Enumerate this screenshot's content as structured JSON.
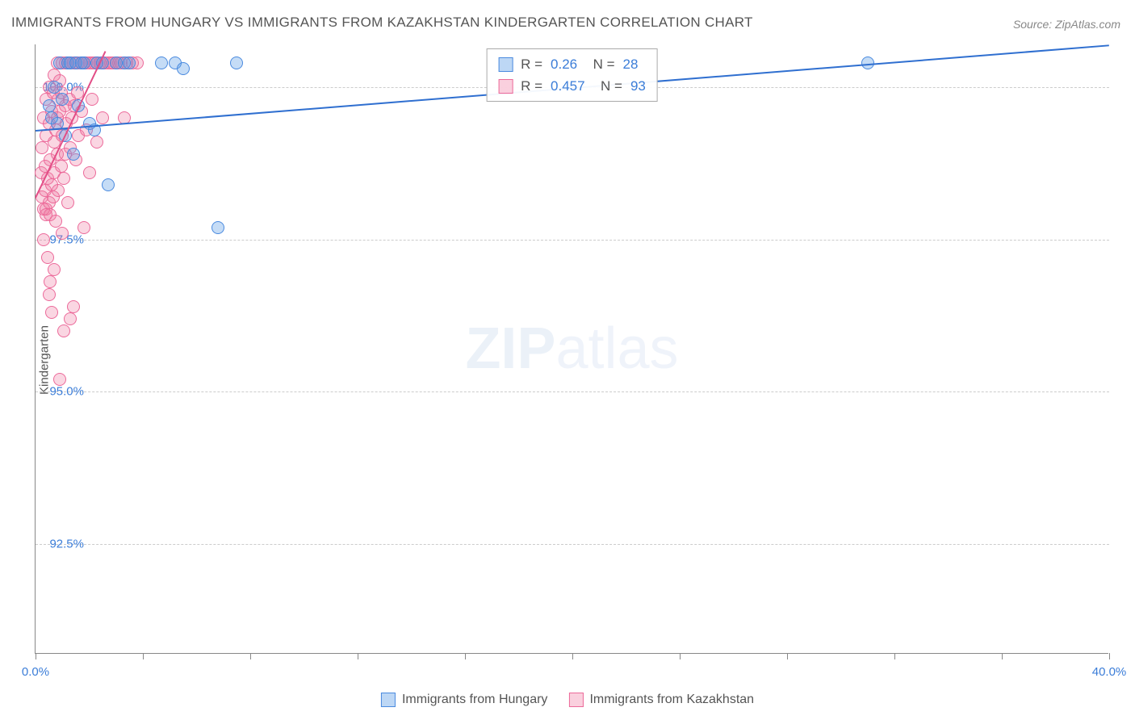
{
  "title": "IMMIGRANTS FROM HUNGARY VS IMMIGRANTS FROM KAZAKHSTAN KINDERGARTEN CORRELATION CHART",
  "source": "Source: ZipAtlas.com",
  "ylabel": "Kindergarten",
  "watermark_bold": "ZIP",
  "watermark_thin": "atlas",
  "chart": {
    "type": "scatter",
    "background_color": "#ffffff",
    "grid_color": "#cccccc",
    "grid_style": "dashed",
    "axis_color": "#888888",
    "xlim": [
      0.0,
      40.0
    ],
    "ylim": [
      90.7,
      100.7
    ],
    "xticks": [
      0.0,
      4.0,
      8.0,
      12.0,
      16.0,
      20.0,
      24.0,
      28.0,
      32.0,
      36.0,
      40.0
    ],
    "xtick_labels_shown": {
      "0": "0.0%",
      "40": "40.0%"
    },
    "yticks": [
      92.5,
      95.0,
      97.5,
      100.0
    ],
    "ytick_labels": [
      "92.5%",
      "95.0%",
      "97.5%",
      "100.0%"
    ],
    "title_fontsize": 17,
    "title_color": "#555555",
    "label_fontsize": 15,
    "tick_label_color": "#3b7dd8",
    "marker_size": 16,
    "marker_opacity": 0.35,
    "series": [
      {
        "name": "Immigrants from Hungary",
        "color_fill": "rgba(90,155,230,0.35)",
        "color_stroke": "#4a8adf",
        "R": 0.26,
        "N": 28,
        "trend": {
          "x1": 0.0,
          "y1": 99.3,
          "x2": 40.0,
          "y2": 100.7,
          "color": "#2f6fd0",
          "width": 2
        },
        "points": [
          [
            0.5,
            99.7
          ],
          [
            0.6,
            99.5
          ],
          [
            0.7,
            100.0
          ],
          [
            0.8,
            99.4
          ],
          [
            0.9,
            100.4
          ],
          [
            1.0,
            99.8
          ],
          [
            1.1,
            99.2
          ],
          [
            1.2,
            100.4
          ],
          [
            1.3,
            100.4
          ],
          [
            1.4,
            98.9
          ],
          [
            1.5,
            100.4
          ],
          [
            1.7,
            100.4
          ],
          [
            1.8,
            100.4
          ],
          [
            2.0,
            99.4
          ],
          [
            2.2,
            99.3
          ],
          [
            2.3,
            100.4
          ],
          [
            2.5,
            100.4
          ],
          [
            2.7,
            98.4
          ],
          [
            3.0,
            100.4
          ],
          [
            3.3,
            100.4
          ],
          [
            3.5,
            100.4
          ],
          [
            4.7,
            100.4
          ],
          [
            5.2,
            100.4
          ],
          [
            5.5,
            100.3
          ],
          [
            6.8,
            97.7
          ],
          [
            7.5,
            100.4
          ],
          [
            31.0,
            100.4
          ],
          [
            1.6,
            99.7
          ]
        ]
      },
      {
        "name": "Immigrants from Kazakhstan",
        "color_fill": "rgba(240,120,160,0.3)",
        "color_stroke": "#ec6a9a",
        "R": 0.457,
        "N": 93,
        "trend": {
          "x1": 0.0,
          "y1": 98.2,
          "x2": 2.6,
          "y2": 100.6,
          "color": "#e24d86",
          "width": 2
        },
        "points": [
          [
            0.2,
            98.6
          ],
          [
            0.25,
            98.2
          ],
          [
            0.25,
            99.0
          ],
          [
            0.3,
            98.0
          ],
          [
            0.3,
            97.5
          ],
          [
            0.3,
            99.5
          ],
          [
            0.35,
            98.7
          ],
          [
            0.35,
            98.3
          ],
          [
            0.4,
            99.2
          ],
          [
            0.4,
            98.0
          ],
          [
            0.4,
            97.9
          ],
          [
            0.4,
            99.8
          ],
          [
            0.45,
            97.2
          ],
          [
            0.45,
            98.5
          ],
          [
            0.5,
            96.6
          ],
          [
            0.5,
            98.1
          ],
          [
            0.5,
            99.4
          ],
          [
            0.5,
            100.0
          ],
          [
            0.55,
            97.9
          ],
          [
            0.55,
            98.8
          ],
          [
            0.6,
            96.3
          ],
          [
            0.6,
            99.6
          ],
          [
            0.6,
            98.4
          ],
          [
            0.65,
            99.9
          ],
          [
            0.65,
            98.2
          ],
          [
            0.7,
            99.1
          ],
          [
            0.7,
            100.2
          ],
          [
            0.7,
            98.6
          ],
          [
            0.75,
            97.8
          ],
          [
            0.75,
            99.3
          ],
          [
            0.8,
            100.4
          ],
          [
            0.8,
            98.9
          ],
          [
            0.8,
            99.5
          ],
          [
            0.85,
            99.8
          ],
          [
            0.85,
            98.3
          ],
          [
            0.9,
            95.2
          ],
          [
            0.9,
            99.6
          ],
          [
            0.9,
            100.1
          ],
          [
            0.95,
            98.7
          ],
          [
            0.95,
            99.9
          ],
          [
            1.0,
            100.4
          ],
          [
            1.0,
            97.6
          ],
          [
            1.0,
            99.2
          ],
          [
            1.05,
            98.5
          ],
          [
            1.1,
            100.4
          ],
          [
            1.1,
            99.7
          ],
          [
            1.1,
            98.9
          ],
          [
            1.15,
            99.4
          ],
          [
            1.2,
            100.4
          ],
          [
            1.2,
            98.1
          ],
          [
            1.25,
            99.8
          ],
          [
            1.3,
            100.4
          ],
          [
            1.3,
            99.0
          ],
          [
            1.35,
            99.5
          ],
          [
            1.4,
            100.4
          ],
          [
            1.4,
            96.4
          ],
          [
            1.45,
            99.7
          ],
          [
            1.5,
            100.4
          ],
          [
            1.5,
            98.8
          ],
          [
            1.55,
            99.9
          ],
          [
            1.6,
            100.4
          ],
          [
            1.6,
            99.2
          ],
          [
            1.7,
            100.4
          ],
          [
            1.7,
            99.6
          ],
          [
            1.8,
            100.4
          ],
          [
            1.8,
            97.7
          ],
          [
            1.9,
            100.4
          ],
          [
            1.9,
            99.3
          ],
          [
            2.0,
            100.4
          ],
          [
            2.0,
            98.6
          ],
          [
            2.1,
            100.4
          ],
          [
            2.1,
            99.8
          ],
          [
            2.2,
            100.4
          ],
          [
            2.3,
            100.4
          ],
          [
            2.3,
            99.1
          ],
          [
            2.4,
            100.4
          ],
          [
            2.5,
            100.4
          ],
          [
            2.5,
            99.5
          ],
          [
            2.6,
            100.4
          ],
          [
            2.7,
            100.4
          ],
          [
            2.8,
            100.4
          ],
          [
            2.9,
            100.4
          ],
          [
            3.0,
            100.4
          ],
          [
            3.1,
            100.4
          ],
          [
            3.2,
            100.4
          ],
          [
            3.4,
            100.4
          ],
          [
            3.6,
            100.4
          ],
          [
            3.8,
            100.4
          ],
          [
            3.3,
            99.5
          ],
          [
            1.05,
            96.0
          ],
          [
            1.3,
            96.2
          ],
          [
            0.55,
            96.8
          ],
          [
            0.7,
            97.0
          ]
        ]
      }
    ],
    "legend_bottom": [
      {
        "swatch": "blue",
        "label": "Immigrants from Hungary"
      },
      {
        "swatch": "pink",
        "label": "Immigrants from Kazakhstan"
      }
    ]
  }
}
